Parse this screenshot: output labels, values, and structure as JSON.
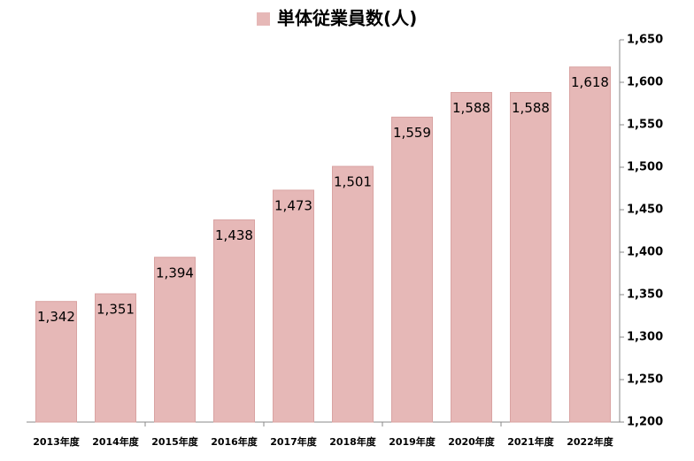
{
  "chart_data": {
    "type": "bar",
    "categories": [
      "2013年度",
      "2014年度",
      "2015年度",
      "2016年度",
      "2017年度",
      "2018年度",
      "2019年度",
      "2020年度",
      "2021年度",
      "2022年度"
    ],
    "series": [
      {
        "name": "単体従業員数(人)",
        "color": "#e6b8b7",
        "values": [
          1342,
          1351,
          1394,
          1438,
          1473,
          1501,
          1559,
          1588,
          1588,
          1618
        ],
        "value_labels": [
          "1,342",
          "1,351",
          "1,394",
          "1,438",
          "1,473",
          "1,501",
          "1,559",
          "1,588",
          "1,588",
          "1,618"
        ]
      }
    ],
    "ylim": [
      1200,
      1650
    ],
    "yticks": [
      {
        "value": 1200,
        "label": "1,200"
      },
      {
        "value": 1250,
        "label": "1,250"
      },
      {
        "value": 1300,
        "label": "1,300"
      },
      {
        "value": 1350,
        "label": "1,350"
      },
      {
        "value": 1400,
        "label": "1,400"
      },
      {
        "value": 1450,
        "label": "1,450"
      },
      {
        "value": 1500,
        "label": "1,500"
      },
      {
        "value": 1550,
        "label": "1,550"
      },
      {
        "value": 1600,
        "label": "1,600"
      },
      {
        "value": 1650,
        "label": "1,650"
      }
    ],
    "y_axis_side": "right",
    "legend": "top",
    "grid": false
  }
}
